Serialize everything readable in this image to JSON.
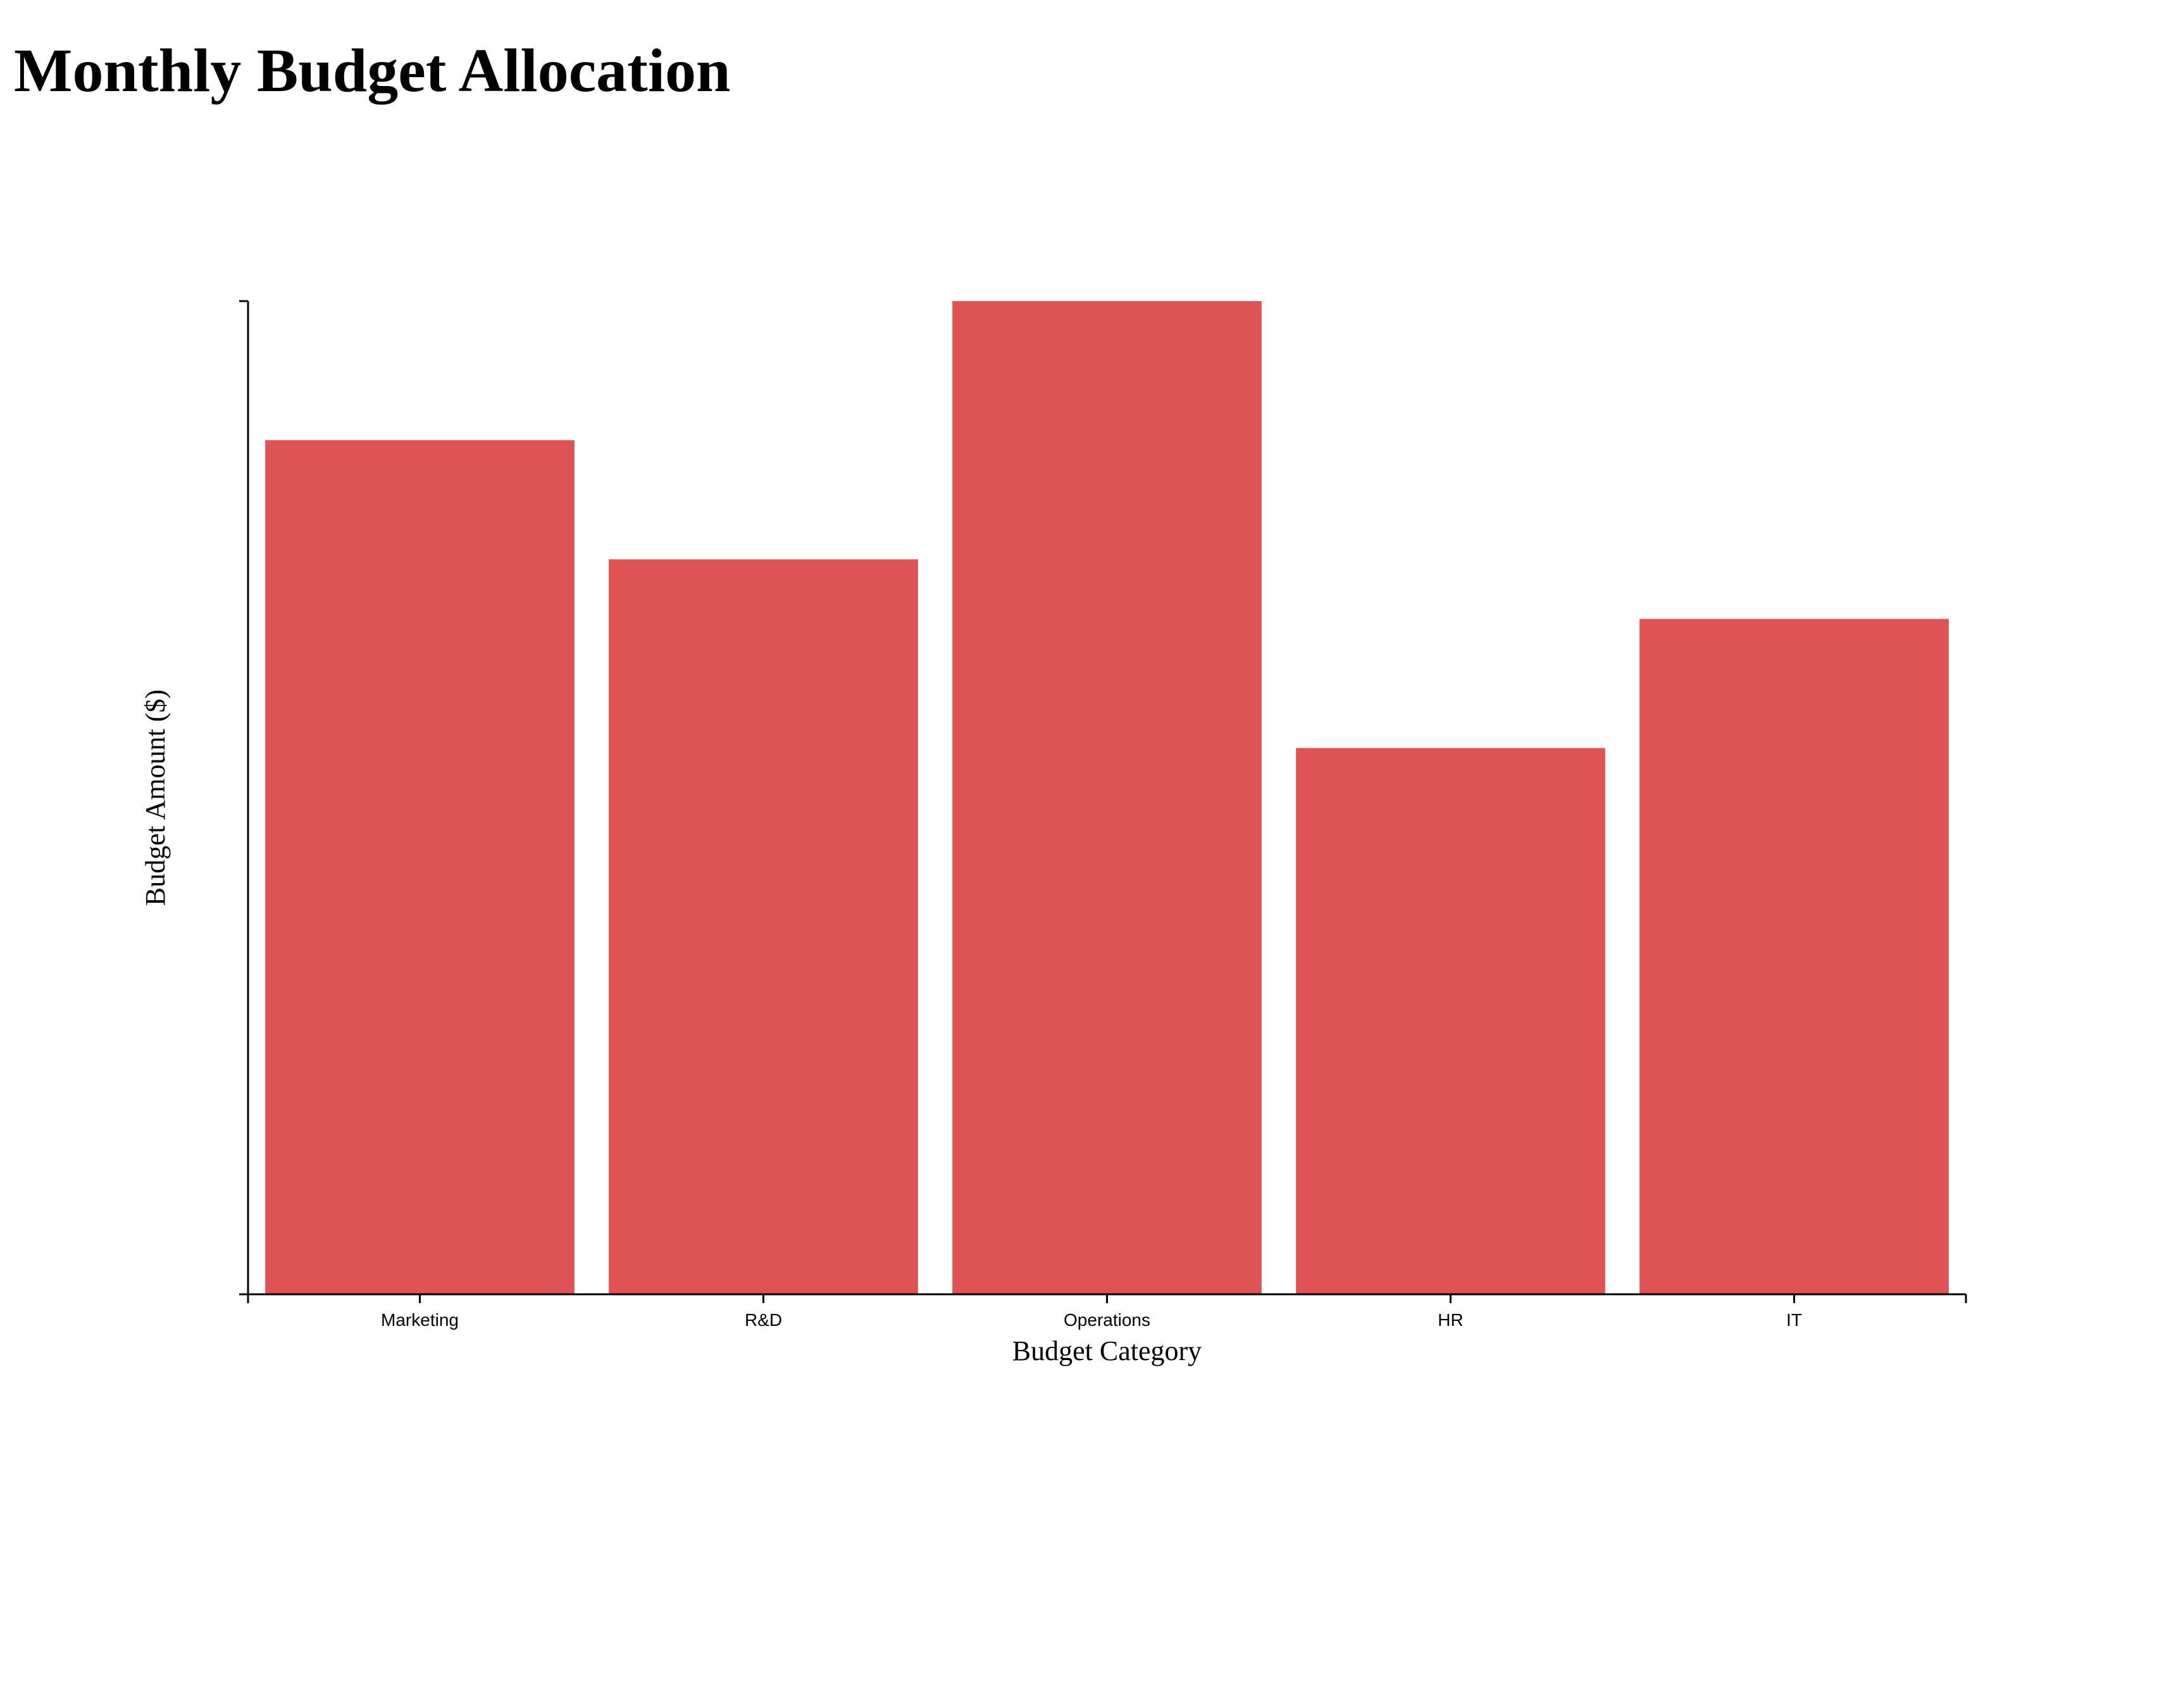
{
  "title": "Monthly Budget Allocation",
  "chart_data": {
    "type": "bar",
    "title": "Monthly Budget Allocation",
    "xlabel": "Budget Category",
    "ylabel": "Budget Amount ($)",
    "categories": [
      "Marketing",
      "R&D",
      "Operations",
      "HR",
      "IT"
    ],
    "values": [
      4300,
      3700,
      5000,
      2750,
      3400
    ],
    "ylim": [
      0,
      5000
    ],
    "bar_color": "#e05355",
    "grid": false,
    "y_tick_labels_shown": false
  }
}
